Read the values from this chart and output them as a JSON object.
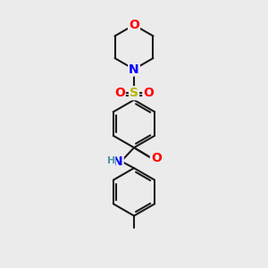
{
  "background_color": "#ebebeb",
  "bond_color": "#1a1a1a",
  "atom_colors": {
    "O": "#ff0000",
    "N": "#0000ff",
    "S": "#b8b800",
    "C": "#1a1a1a",
    "H": "#4a9a9a"
  },
  "figsize": [
    3.0,
    3.0
  ],
  "dpi": 100,
  "lw": 1.5
}
